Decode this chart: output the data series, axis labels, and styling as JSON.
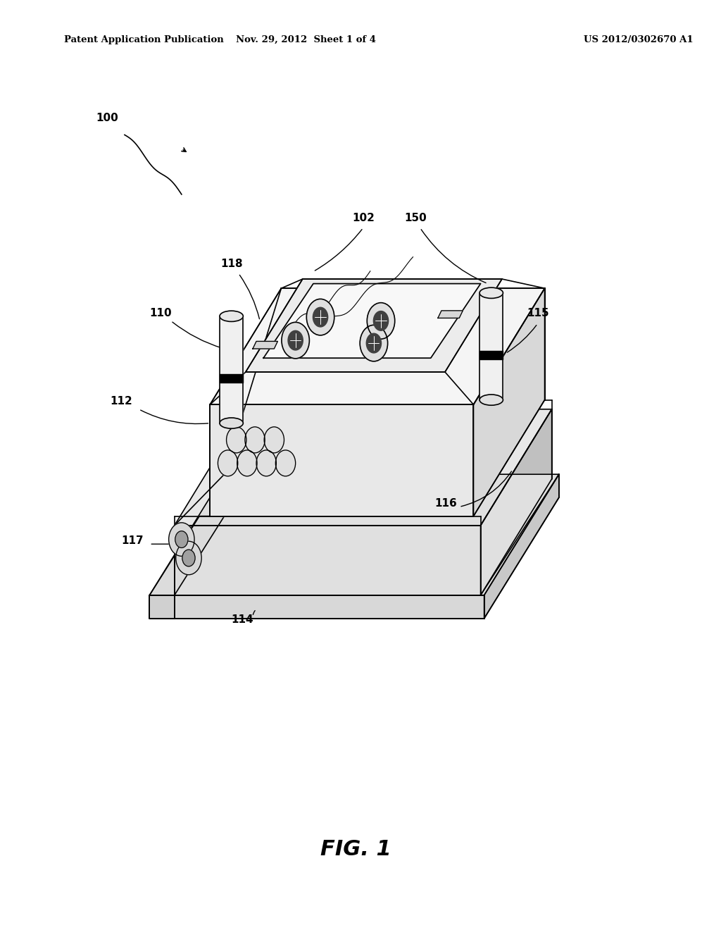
{
  "background_color": "#ffffff",
  "header_left": "Patent Application Publication",
  "header_center": "Nov. 29, 2012  Sheet 1 of 4",
  "header_right": "US 2012/0302670 A1",
  "figure_label": "FIG. 1",
  "lw": 1.2,
  "lw_thick": 1.8
}
